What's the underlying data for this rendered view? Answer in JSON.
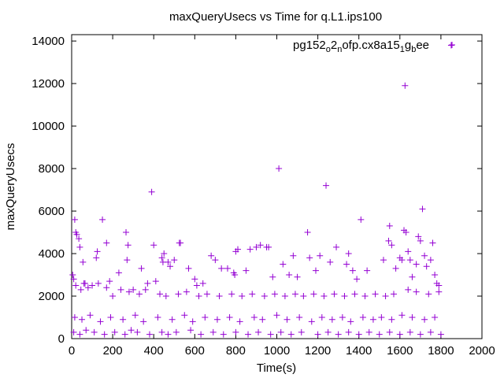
{
  "chart_data": {
    "type": "scatter",
    "title": "maxQueryUsecs vs Time for q.L1.ips100",
    "xlabel": "Time(s)",
    "ylabel": "maxQueryUsecs",
    "xlim": [
      0,
      2000
    ],
    "ylim": [
      0,
      14300
    ],
    "xticks": [
      0,
      200,
      400,
      600,
      800,
      1000,
      1200,
      1400,
      1600,
      1800,
      2000
    ],
    "yticks": [
      0,
      2000,
      4000,
      6000,
      8000,
      10000,
      12000,
      14000
    ],
    "legend_position": "top-right",
    "grid": false,
    "marker": "plus",
    "series_color": "#9400d3",
    "series": [
      {
        "name": "pg152_o2_nofp.cx8a15_1g_bee",
        "name_parts": [
          {
            "text": "pg152",
            "sub": false
          },
          {
            "text": "o",
            "sub": true
          },
          {
            "text": "2",
            "sub": false
          },
          {
            "text": "n",
            "sub": true
          },
          {
            "text": "ofp.cx8a15",
            "sub": false
          },
          {
            "text": "1",
            "sub": true
          },
          {
            "text": "g",
            "sub": false
          },
          {
            "text": "b",
            "sub": true
          },
          {
            "text": "ee",
            "sub": false
          }
        ],
        "points": [
          [
            5,
            3000
          ],
          [
            10,
            2800
          ],
          [
            15,
            5600
          ],
          [
            20,
            5000
          ],
          [
            25,
            4900
          ],
          [
            35,
            4700
          ],
          [
            40,
            4300
          ],
          [
            45,
            2300
          ],
          [
            55,
            3600
          ],
          [
            60,
            2600
          ],
          [
            80,
            2400
          ],
          [
            120,
            3800
          ],
          [
            125,
            4100
          ],
          [
            150,
            5600
          ],
          [
            170,
            4500
          ],
          [
            185,
            2700
          ],
          [
            200,
            2000
          ],
          [
            230,
            3100
          ],
          [
            265,
            5000
          ],
          [
            270,
            3700
          ],
          [
            275,
            4400
          ],
          [
            300,
            2300
          ],
          [
            340,
            3300
          ],
          [
            370,
            2600
          ],
          [
            390,
            6900
          ],
          [
            400,
            4400
          ],
          [
            410,
            2700
          ],
          [
            440,
            3800
          ],
          [
            445,
            3600
          ],
          [
            450,
            4000
          ],
          [
            470,
            3600
          ],
          [
            480,
            3400
          ],
          [
            500,
            3700
          ],
          [
            525,
            4500
          ],
          [
            530,
            4500
          ],
          [
            570,
            3300
          ],
          [
            600,
            2800
          ],
          [
            610,
            2500
          ],
          [
            640,
            2600
          ],
          [
            680,
            3900
          ],
          [
            700,
            3700
          ],
          [
            730,
            3300
          ],
          [
            760,
            3300
          ],
          [
            790,
            3100
          ],
          [
            795,
            3000
          ],
          [
            800,
            4100
          ],
          [
            810,
            4200
          ],
          [
            850,
            3200
          ],
          [
            870,
            4200
          ],
          [
            900,
            4300
          ],
          [
            920,
            4400
          ],
          [
            950,
            4300
          ],
          [
            960,
            4300
          ],
          [
            980,
            2900
          ],
          [
            1010,
            8000
          ],
          [
            1030,
            3500
          ],
          [
            1060,
            3000
          ],
          [
            1080,
            3900
          ],
          [
            1100,
            2900
          ],
          [
            1150,
            5000
          ],
          [
            1160,
            3800
          ],
          [
            1190,
            3200
          ],
          [
            1210,
            3900
          ],
          [
            1240,
            7200
          ],
          [
            1260,
            3600
          ],
          [
            1290,
            4300
          ],
          [
            1340,
            3500
          ],
          [
            1350,
            4000
          ],
          [
            1370,
            3200
          ],
          [
            1390,
            2800
          ],
          [
            1410,
            5600
          ],
          [
            1440,
            3200
          ],
          [
            1520,
            3700
          ],
          [
            1545,
            4600
          ],
          [
            1550,
            5300
          ],
          [
            1560,
            4400
          ],
          [
            1580,
            3300
          ],
          [
            1600,
            3800
          ],
          [
            1610,
            3700
          ],
          [
            1620,
            5100
          ],
          [
            1625,
            11900
          ],
          [
            1630,
            5000
          ],
          [
            1640,
            4100
          ],
          [
            1650,
            3700
          ],
          [
            1660,
            2900
          ],
          [
            1680,
            3500
          ],
          [
            1690,
            4800
          ],
          [
            1700,
            4600
          ],
          [
            1710,
            6100
          ],
          [
            1720,
            3900
          ],
          [
            1730,
            3400
          ],
          [
            1750,
            3700
          ],
          [
            1760,
            4500
          ],
          [
            1770,
            3000
          ],
          [
            1780,
            2600
          ],
          [
            1790,
            2500
          ],
          [
            1850,
            13800
          ],
          [
            20,
            2500
          ],
          [
            65,
            2600
          ],
          [
            100,
            2500
          ],
          [
            130,
            2600
          ],
          [
            170,
            2400
          ],
          [
            240,
            2300
          ],
          [
            280,
            2200
          ],
          [
            330,
            2100
          ],
          [
            360,
            2300
          ],
          [
            430,
            2100
          ],
          [
            460,
            2000
          ],
          [
            520,
            2100
          ],
          [
            560,
            2200
          ],
          [
            620,
            2000
          ],
          [
            660,
            2100
          ],
          [
            720,
            2000
          ],
          [
            780,
            2100
          ],
          [
            830,
            2000
          ],
          [
            880,
            2100
          ],
          [
            940,
            2000
          ],
          [
            990,
            2100
          ],
          [
            1040,
            2000
          ],
          [
            1090,
            2100
          ],
          [
            1130,
            2000
          ],
          [
            1180,
            2100
          ],
          [
            1230,
            2000
          ],
          [
            1280,
            2100
          ],
          [
            1330,
            2000
          ],
          [
            1380,
            2100
          ],
          [
            1430,
            2000
          ],
          [
            1480,
            2100
          ],
          [
            1530,
            2000
          ],
          [
            1570,
            2100
          ],
          [
            1640,
            2300
          ],
          [
            1680,
            2200
          ],
          [
            1740,
            2100
          ],
          [
            1790,
            2200
          ],
          [
            15,
            1000
          ],
          [
            50,
            900
          ],
          [
            90,
            1100
          ],
          [
            140,
            800
          ],
          [
            190,
            1000
          ],
          [
            250,
            900
          ],
          [
            310,
            1100
          ],
          [
            350,
            800
          ],
          [
            420,
            1000
          ],
          [
            490,
            900
          ],
          [
            550,
            1100
          ],
          [
            590,
            800
          ],
          [
            650,
            1000
          ],
          [
            710,
            900
          ],
          [
            770,
            1000
          ],
          [
            820,
            800
          ],
          [
            890,
            1000
          ],
          [
            930,
            900
          ],
          [
            1000,
            1100
          ],
          [
            1050,
            900
          ],
          [
            1110,
            1000
          ],
          [
            1170,
            800
          ],
          [
            1220,
            1000
          ],
          [
            1270,
            900
          ],
          [
            1320,
            1000
          ],
          [
            1360,
            800
          ],
          [
            1420,
            1000
          ],
          [
            1470,
            900
          ],
          [
            1510,
            1000
          ],
          [
            1560,
            900
          ],
          [
            1610,
            1100
          ],
          [
            1660,
            1000
          ],
          [
            1720,
            900
          ],
          [
            1770,
            1000
          ],
          [
            10,
            300
          ],
          [
            40,
            200
          ],
          [
            70,
            400
          ],
          [
            110,
            300
          ],
          [
            160,
            200
          ],
          [
            210,
            300
          ],
          [
            260,
            200
          ],
          [
            290,
            400
          ],
          [
            320,
            300
          ],
          [
            380,
            200
          ],
          [
            440,
            300
          ],
          [
            470,
            200
          ],
          [
            510,
            300
          ],
          [
            580,
            400
          ],
          [
            630,
            200
          ],
          [
            690,
            300
          ],
          [
            740,
            200
          ],
          [
            800,
            300
          ],
          [
            860,
            200
          ],
          [
            910,
            300
          ],
          [
            970,
            200
          ],
          [
            1020,
            300
          ],
          [
            1070,
            200
          ],
          [
            1120,
            300
          ],
          [
            1200,
            200
          ],
          [
            1250,
            300
          ],
          [
            1300,
            200
          ],
          [
            1350,
            300
          ],
          [
            1400,
            200
          ],
          [
            1450,
            300
          ],
          [
            1500,
            200
          ],
          [
            1550,
            300
          ],
          [
            1600,
            200
          ],
          [
            1650,
            300
          ],
          [
            1700,
            200
          ],
          [
            1750,
            300
          ],
          [
            1800,
            200
          ]
        ]
      }
    ]
  }
}
